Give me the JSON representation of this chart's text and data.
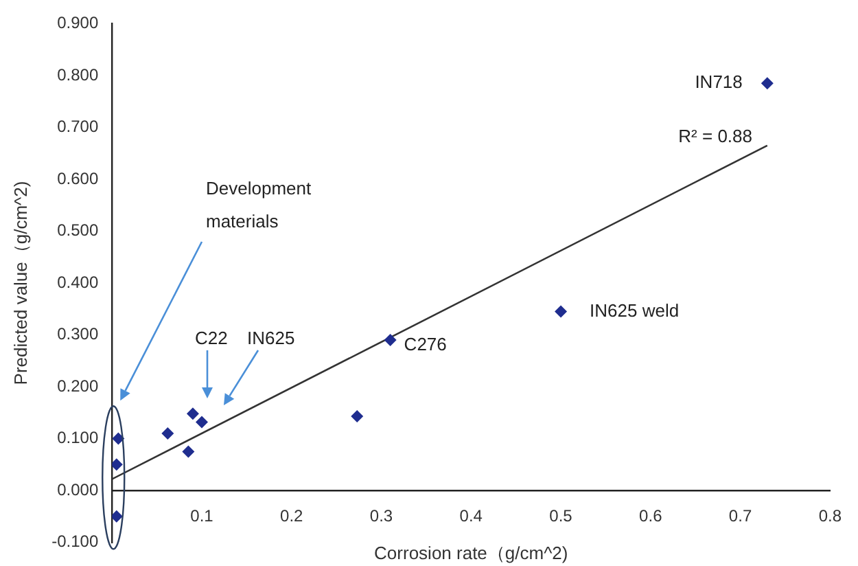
{
  "chart_data": {
    "type": "scatter",
    "xlabel": "Corrosion rate（g/cm^2)",
    "ylabel": "Predicted value（g/cm^2)",
    "xlim": [
      0,
      0.8
    ],
    "xticks": [
      0.1,
      0.2,
      0.3,
      0.4,
      0.5,
      0.6,
      0.7,
      0.8
    ],
    "ylim": [
      -0.1,
      0.9
    ],
    "yticks": [
      {
        "value": -0.1,
        "label": "-0.100"
      },
      {
        "value": 0,
        "label": "0.000"
      },
      {
        "value": 0.1,
        "label": "0.100"
      },
      {
        "value": 0.2,
        "label": "0.200"
      },
      {
        "value": 0.3,
        "label": "0.300"
      },
      {
        "value": 0.4,
        "label": "0.400"
      },
      {
        "value": 0.5,
        "label": "0.500"
      },
      {
        "value": 0.6,
        "label": "0.600"
      },
      {
        "value": 0.7,
        "label": "0.700"
      },
      {
        "value": 0.8,
        "label": "0.800"
      },
      {
        "value": 0.9,
        "label": "0.900"
      }
    ],
    "grid": false,
    "legend": false,
    "marker": "diamond",
    "series": [
      {
        "type": "scatter",
        "color": "#1f2d8f",
        "x": [
          0.007,
          0.005,
          0.005,
          0.062,
          0.09,
          0.1,
          0.085,
          0.273,
          0.31,
          0.5,
          0.73
        ],
        "values": [
          0.1,
          0.05,
          -0.05,
          0.11,
          0.148,
          0.132,
          0.075,
          0.143,
          0.29,
          0.345,
          0.785
        ]
      },
      {
        "type": "line",
        "color": "#333333",
        "marker": "none",
        "line_style": "solid",
        "x": [
          0,
          0.73
        ],
        "values": [
          0.022,
          0.665
        ]
      }
    ],
    "annotations": [
      "Development materials",
      "C22",
      "IN625",
      {
        "text": "C276",
        "x": 0.31,
        "y": 0.29
      },
      {
        "text": "IN625 weld",
        "x": 0.5,
        "y": 0.345
      },
      {
        "text": "IN718",
        "x": 0.73,
        "y": 0.785
      },
      "R² = 0.88"
    ]
  }
}
